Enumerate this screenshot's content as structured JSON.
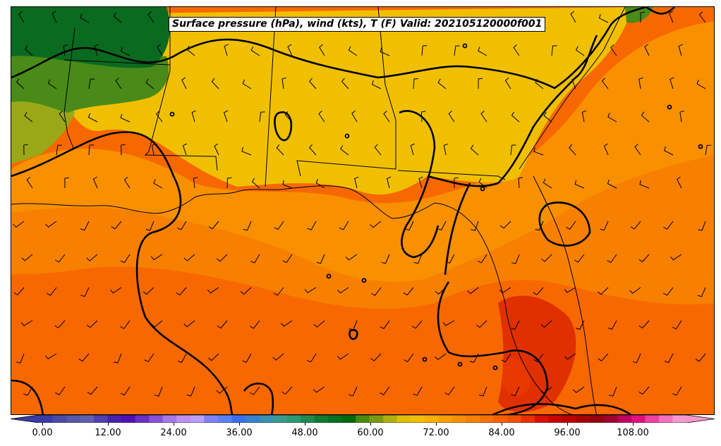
{
  "map": {
    "title": "Surface pressure (hPa), wind (kts), T (F) Valid: 202105120000f001"
  },
  "colorbar": {
    "tick_labels": [
      "0.00",
      "12.00",
      "24.00",
      "36.00",
      "48.00",
      "60.00",
      "72.00",
      "84.00",
      "96.00",
      "108.00"
    ],
    "colors": [
      "#3a3aa8",
      "#4a4aa8",
      "#5858a8",
      "#6060b0",
      "#5040b0",
      "#4a20b0",
      "#5010b8",
      "#6a30c8",
      "#8a50d8",
      "#a878e8",
      "#c090f0",
      "#b8a0f8",
      "#8080f8",
      "#5a80f8",
      "#3a70f0",
      "#3a80d0",
      "#3a90b0",
      "#3a9a90",
      "#2a9a70",
      "#208a50",
      "#107a30",
      "#087020",
      "#006a10",
      "#4a8a10",
      "#7a9a10",
      "#b0b010",
      "#e0c000",
      "#f0c000",
      "#f8b000",
      "#f8a000",
      "#f89000",
      "#f88000",
      "#f87000",
      "#f86000",
      "#f05000",
      "#e83000",
      "#d81000",
      "#c80000",
      "#b80000",
      "#a80000",
      "#980010",
      "#a00030",
      "#c00060",
      "#e01080",
      "#f040a0",
      "#f870c0",
      "#f898d0"
    ],
    "field_colors": {
      "dark_green": "#0a6a20",
      "green": "#4a8a18",
      "olive": "#9aa818",
      "yellow": "#f0c000",
      "orange": "#f89000",
      "dark_orange": "#f86800",
      "red_orange": "#f05000",
      "red": "#e03000"
    }
  }
}
